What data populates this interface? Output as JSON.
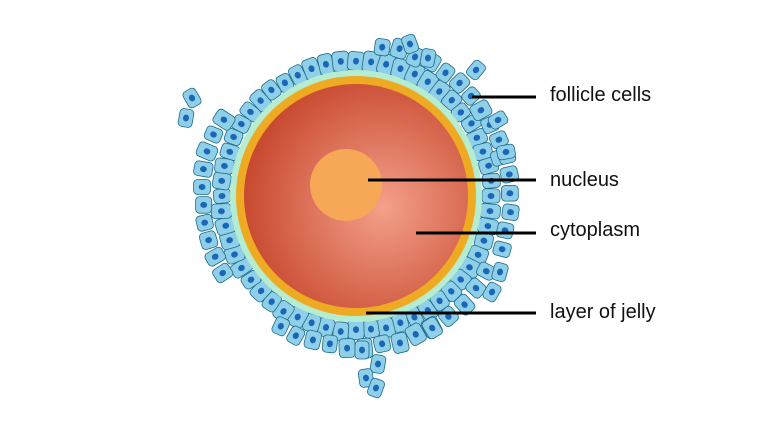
{
  "diagram": {
    "labels": {
      "follicle_cells": "follicle cells",
      "nucleus": "nucleus",
      "cytoplasm": "cytoplasm",
      "layer_of_jelly": "layer of jelly"
    },
    "colors": {
      "follicle_cell_fill": "#8fd0e8",
      "follicle_cell_stroke": "#1a6a8e",
      "follicle_nucleus": "#1a66b8",
      "jelly_layer": "#b6ecd0",
      "membrane": "#eeaa22",
      "cytoplasm_center": "#f4a08a",
      "cytoplasm_edge": "#c84a30",
      "nucleus": "#f6a856",
      "leader_line": "#000000"
    }
  }
}
